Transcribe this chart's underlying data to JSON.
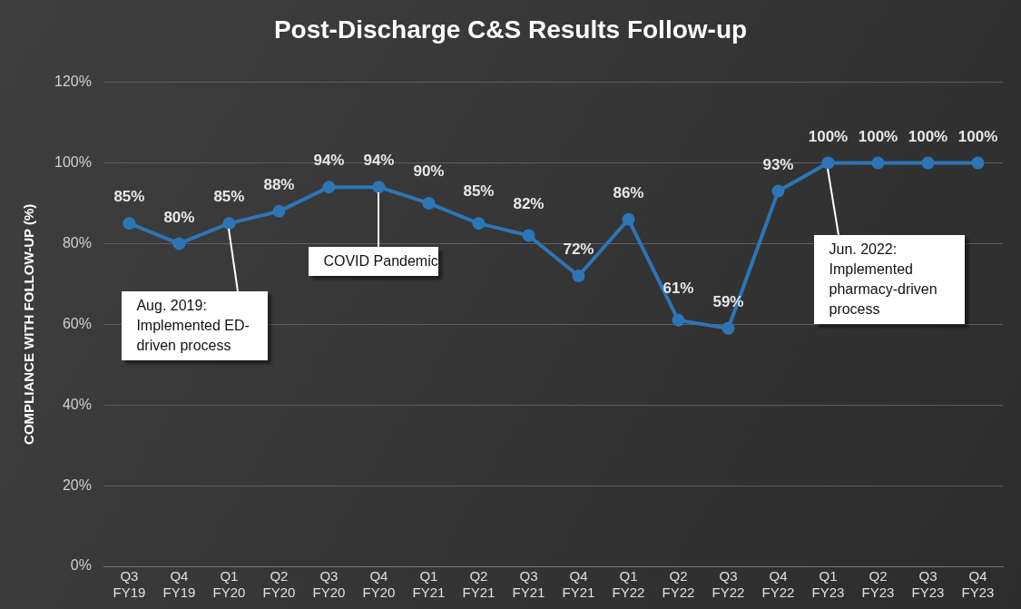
{
  "chart_data": {
    "type": "line",
    "title": "Post-Discharge C&S Results Follow-up",
    "ylabel": "COMPLIANCE WITH FOLLOW-UP (%)",
    "categories": [
      "Q3 FY19",
      "Q4 FY19",
      "Q1 FY20",
      "Q2 FY20",
      "Q3 FY20",
      "Q4 FY20",
      "Q1 FY21",
      "Q2 FY21",
      "Q3 FY21",
      "Q4 FY21",
      "Q1 FY22",
      "Q2 FY22",
      "Q3 FY22",
      "Q4 FY22",
      "Q1 FY23",
      "Q2 FY23",
      "Q3 FY23",
      "Q4 FY23"
    ],
    "series": [
      {
        "color": "#2e75b6",
        "values": [
          85,
          80,
          85,
          88,
          94,
          94,
          90,
          85,
          82,
          72,
          86,
          61,
          59,
          93,
          100,
          100,
          100,
          100
        ],
        "value_labels": [
          "85%",
          "80%",
          "85%",
          "88%",
          "94%",
          "94%",
          "90%",
          "85%",
          "82%",
          "72%",
          "86%",
          "61%",
          "59%",
          "93%",
          "100%",
          "100%",
          "100%",
          "100%"
        ]
      }
    ],
    "ylim": [
      0,
      120
    ],
    "yticks": [
      {
        "value": 0,
        "label": "0%"
      },
      {
        "value": 20,
        "label": "20%"
      },
      {
        "value": 40,
        "label": "40%"
      },
      {
        "value": 60,
        "label": "60%"
      },
      {
        "value": 80,
        "label": "80%"
      },
      {
        "value": 100,
        "label": "100%"
      },
      {
        "value": 120,
        "label": "120%"
      }
    ],
    "grid": "y",
    "marker": "circle",
    "line_style": "solid",
    "legend": false,
    "annotations": [
      {
        "text": "Aug. 2019:\nImplemented ED-\ndriven process",
        "x": "Q1 FY20",
        "y": 85
      },
      {
        "text": "COVID Pandemic",
        "x": "Q4 FY20",
        "y": 94
      },
      {
        "text": "Jun. 2022:\nImplemented\npharmacy-driven\nprocess",
        "x": "Q1 FY23",
        "y": 100
      }
    ]
  }
}
